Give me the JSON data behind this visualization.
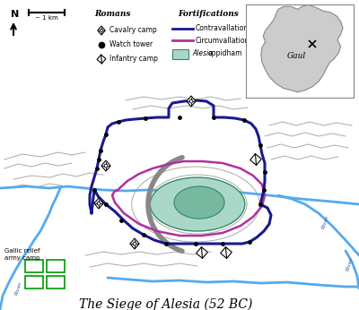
{
  "title": "The Siege of Alesia (52 BC)",
  "title_fontsize": 10,
  "bg_color": "#ffffff",
  "contravallation_color": "#1a1a8c",
  "circumvallation_color": "#b030a0",
  "river_color": "#55aaee",
  "terrain_color": "#aaaaaa",
  "alesia_fill": "#aad8c8",
  "alesia_fill2": "#77b8a0",
  "alesia_edge": "#338866",
  "gallic_camp_color": "#009900",
  "gaul_fill": "#cccccc",
  "gaul_edge": "#888888",
  "legend_romans_items": [
    "Cavalry camp",
    "Watch tower",
    "Infantry camp"
  ],
  "legend_fort_items": [
    "Contravallation",
    "Circumvallation"
  ],
  "scale_label": "~ 1 km"
}
